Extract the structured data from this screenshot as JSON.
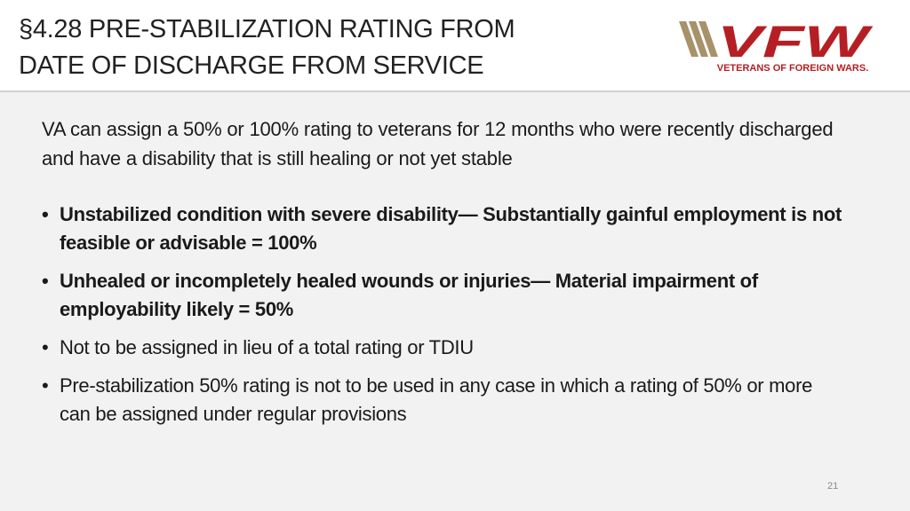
{
  "header": {
    "title": [
      "§4.28 PRE-STABILIZATION RATING FROM",
      "DATE OF DISCHARGE FROM SERVICE"
    ],
    "logo": {
      "mark": "VFW",
      "tagline": "VETERANS OF FOREIGN WARS."
    }
  },
  "body": {
    "intro": "VA can assign a 50% or 100% rating to veterans for 12 months who were recently discharged and have a disability that is still healing or not yet stable",
    "bullets": [
      {
        "text": "Unstabilized condition with severe disability— Substantially gainful employment is not feasible or advisable = 100%",
        "bold": true
      },
      {
        "text": "Unhealed or incompletely healed wounds or injuries— Material impairment of employability likely = 50%",
        "bold": true
      },
      {
        "text": "Not to be assigned in lieu of a total rating or TDIU",
        "bold": false
      },
      {
        "text": "Pre-stabilization 50% rating is not to be used in any case in which a rating of 50% or more can be assigned under regular provisions",
        "bold": false
      }
    ]
  },
  "footer": {
    "page_number": "21"
  }
}
